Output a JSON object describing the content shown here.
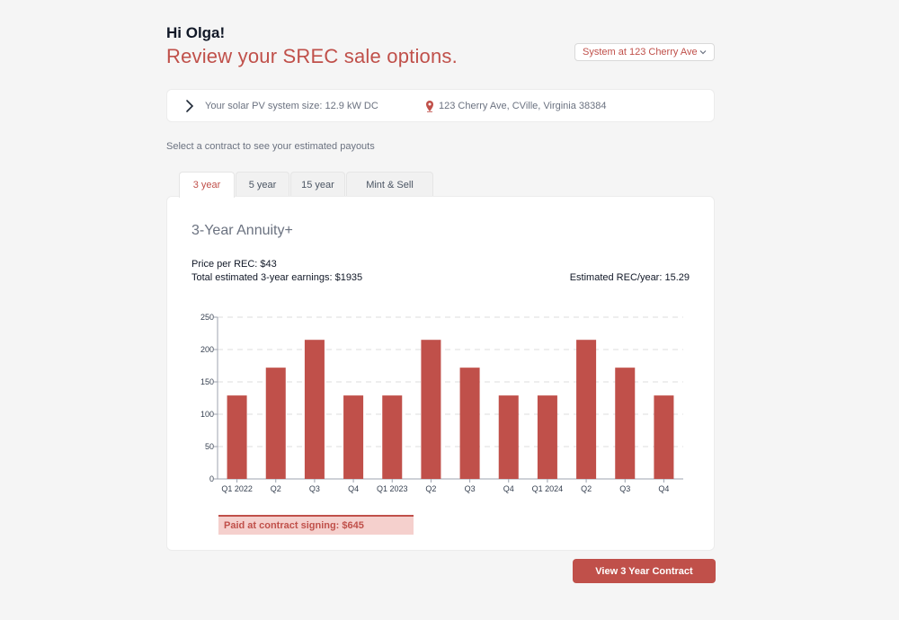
{
  "header": {
    "greeting": "Hi Olga!",
    "headline": "Review your SREC sale options."
  },
  "system_select": {
    "selected": "System at 123 Cherry Ave..",
    "chevron_icon": "chevron-down-icon"
  },
  "info_bar": {
    "expand_icon": "chevron-right-icon",
    "system_size": "Your solar PV system size: 12.9 kW DC",
    "location_icon": "map-pin-icon",
    "address": "123 Cherry Ave, CVille, Virginia 38384"
  },
  "prompt": "Select a contract to see your estimated payouts",
  "tabs": [
    {
      "label": "3 year",
      "active": true
    },
    {
      "label": "5 year",
      "active": false
    },
    {
      "label": "15 year",
      "active": false
    },
    {
      "label": "Mint & Sell",
      "active": false
    }
  ],
  "card": {
    "title": "3-Year Annuity+",
    "price_per_rec": "Price per REC: $43",
    "total_earnings": "Total estimated 3-year earnings: $1935",
    "rec_per_year": "Estimated REC/year: 15.29",
    "signing_banner": "Paid at contract signing: $645"
  },
  "chart_data": {
    "type": "bar",
    "categories": [
      "Q1 2022",
      "Q2",
      "Q3",
      "Q4",
      "Q1 2023",
      "Q2",
      "Q3",
      "Q4",
      "Q1 2024",
      "Q2",
      "Q3",
      "Q4"
    ],
    "values": [
      129,
      172,
      215,
      129,
      129,
      215,
      172,
      129,
      129,
      215,
      172,
      129
    ],
    "ylim": [
      0,
      250
    ],
    "yticks": [
      0,
      50,
      100,
      150,
      200,
      250
    ],
    "grid": true,
    "bar_color": "#c0504a"
  },
  "cta": {
    "label": "View 3 Year Contract"
  },
  "colors": {
    "accent": "#c0504a",
    "background": "#f5f5f5",
    "banner_bg": "#f5d0cd"
  }
}
